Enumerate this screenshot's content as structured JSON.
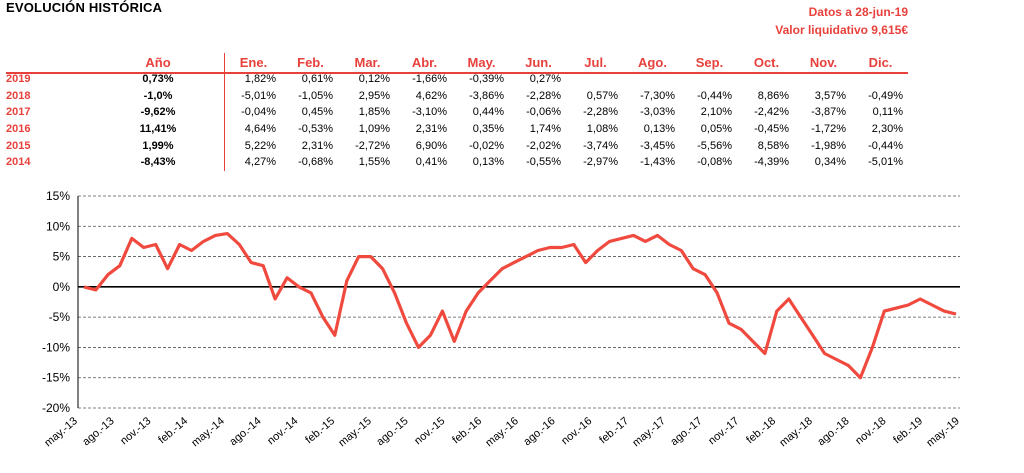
{
  "title": "EVOLUCIÓN HISTÓRICA",
  "date_line": "Datos a 28-jun-19",
  "nav_line": "Valor liquidativo 9,615€",
  "colors": {
    "accent": "#e8413c",
    "line": "#f04a3f"
  },
  "table": {
    "headers": [
      "",
      "Año",
      "Ene.",
      "Feb.",
      "Mar.",
      "Abr.",
      "May.",
      "Jun.",
      "Jul.",
      "Ago.",
      "Sep.",
      "Oct.",
      "Nov.",
      "Dic."
    ],
    "rows": [
      {
        "year": "2019",
        "annual": "0,73%",
        "months": [
          "1,82%",
          "0,61%",
          "0,12%",
          "-1,66%",
          "-0,39%",
          "0,27%",
          "",
          "",
          "",
          "",
          "",
          ""
        ]
      },
      {
        "year": "2018",
        "annual": "-1,0%",
        "months": [
          "-5,01%",
          "-1,05%",
          "2,95%",
          "4,62%",
          "-3,86%",
          "-2,28%",
          "0,57%",
          "-7,30%",
          "-0,44%",
          "8,86%",
          "3,57%",
          "-0,49%"
        ]
      },
      {
        "year": "2017",
        "annual": "-9,62%",
        "months": [
          "-0,04%",
          "0,45%",
          "1,85%",
          "-3,10%",
          "0,44%",
          "-0,06%",
          "-2,28%",
          "-3,03%",
          "2,10%",
          "-2,42%",
          "-3,87%",
          "0,11%"
        ]
      },
      {
        "year": "2016",
        "annual": "11,41%",
        "months": [
          "4,64%",
          "-0,53%",
          "1,09%",
          "2,31%",
          "0,35%",
          "1,74%",
          "1,08%",
          "0,13%",
          "0,05%",
          "-0,45%",
          "-1,72%",
          "2,30%"
        ]
      },
      {
        "year": "2015",
        "annual": "1,99%",
        "months": [
          "5,22%",
          "2,31%",
          "-2,72%",
          "6,90%",
          "-0,02%",
          "-2,02%",
          "-3,74%",
          "-3,45%",
          "-5,56%",
          "8,58%",
          "-1,98%",
          "-0,44%"
        ]
      },
      {
        "year": "2014",
        "annual": "-8,43%",
        "months": [
          "4,27%",
          "-0,68%",
          "1,55%",
          "0,41%",
          "0,13%",
          "-0,55%",
          "-2,97%",
          "-1,43%",
          "-0,08%",
          "-4,39%",
          "0,34%",
          "-5,01%"
        ]
      }
    ]
  },
  "chart_data": {
    "type": "line",
    "ylim": [
      -20,
      15
    ],
    "yticks": [
      "15%",
      "10%",
      "5%",
      "0%",
      "-5%",
      "-10%",
      "-15%",
      "-20%"
    ],
    "ytick_values": [
      15,
      10,
      5,
      0,
      -5,
      -10,
      -15,
      -20
    ],
    "xtick_labels": [
      "may.-13",
      "ago.-13",
      "nov.-13",
      "feb.-14",
      "may.-14",
      "ago.-14",
      "nov.-14",
      "feb.-15",
      "may.-15",
      "ago.-15",
      "nov.-15",
      "feb.-16",
      "may.-16",
      "ago.-16",
      "nov.-16",
      "feb.-17",
      "may.-17",
      "ago.-17",
      "nov.-17",
      "feb.-18",
      "may.-18",
      "ago.-18",
      "nov.-18",
      "feb.-19",
      "may.-19"
    ],
    "grid": "horizontal dashed",
    "series": [
      {
        "x": [
          "may.-13",
          "jun.-13",
          "jul.-13",
          "ago.-13",
          "sep.-13",
          "oct.-13",
          "nov.-13",
          "dic.-13",
          "ene.-14",
          "feb.-14",
          "mar.-14",
          "abr.-14",
          "may.-14",
          "jun.-14",
          "jul.-14",
          "ago.-14",
          "sep.-14",
          "oct.-14",
          "nov.-14",
          "dic.-14",
          "ene.-15",
          "feb.-15",
          "mar.-15",
          "abr.-15",
          "may.-15",
          "jun.-15",
          "jul.-15",
          "ago.-15",
          "sep.-15",
          "oct.-15",
          "nov.-15",
          "dic.-15",
          "ene.-16",
          "feb.-16",
          "mar.-16",
          "abr.-16",
          "may.-16",
          "jun.-16",
          "jul.-16",
          "ago.-16",
          "sep.-16",
          "oct.-16",
          "nov.-16",
          "dic.-16",
          "ene.-17",
          "feb.-17",
          "mar.-17",
          "abr.-17",
          "may.-17",
          "jun.-17",
          "jul.-17",
          "ago.-17",
          "sep.-17",
          "oct.-17",
          "nov.-17",
          "dic.-17",
          "ene.-18",
          "feb.-18",
          "mar.-18",
          "abr.-18",
          "may.-18",
          "jun.-18",
          "jul.-18",
          "ago.-18",
          "sep.-18",
          "oct.-18",
          "nov.-18",
          "dic.-18",
          "ene.-19",
          "feb.-19",
          "mar.-19",
          "abr.-19",
          "may.-19",
          "jun.-19"
        ],
        "y": [
          0,
          -0.5,
          2,
          3.5,
          8,
          6.5,
          7,
          3,
          7,
          6,
          7.5,
          8.5,
          8.8,
          7,
          4,
          3.5,
          -2,
          1.5,
          0,
          -1,
          -5,
          -8,
          1,
          5,
          5,
          3,
          -1,
          -6,
          -10,
          -8,
          -4,
          -9,
          -4,
          -1,
          1,
          3,
          4,
          5,
          6,
          6.5,
          6.5,
          7,
          4,
          6,
          7.5,
          8,
          8.5,
          7.5,
          8.5,
          7,
          6,
          3,
          2,
          -1,
          -6,
          -7,
          -9,
          -11,
          -4,
          -2,
          -5,
          -8,
          -11,
          -12,
          -13,
          -15,
          -10,
          -4,
          -3.5,
          -3,
          -2,
          -3,
          -4,
          -4.5
        ]
      }
    ]
  }
}
